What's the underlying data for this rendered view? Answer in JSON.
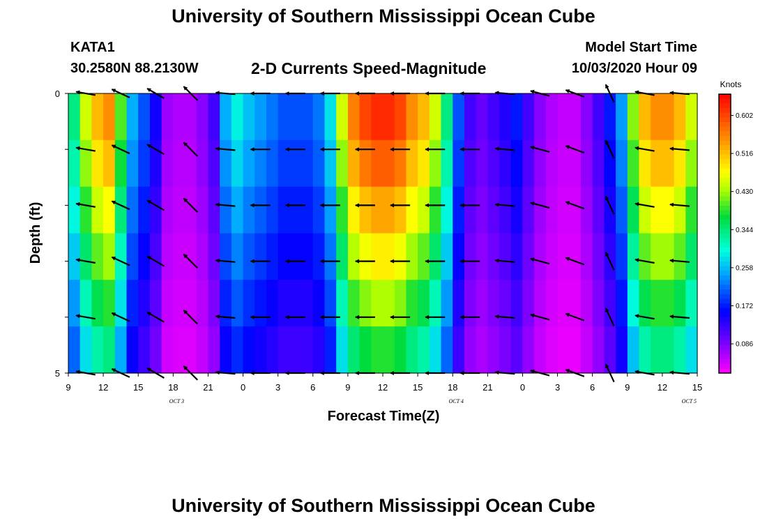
{
  "page": {
    "title_top": "University of Southern Mississippi Ocean Cube",
    "title_bottom": "University of Southern Mississippi Ocean Cube",
    "station_id": "KATA1",
    "coordinates": "30.2580N 88.2130W",
    "subtitle": "2-D Currents Speed-Magnitude",
    "model_start_label": "Model Start Time",
    "model_start_value": "10/03/2020 Hour 09"
  },
  "chart_data": {
    "type": "heatmap",
    "title": "2-D Currents Speed-Magnitude",
    "xlabel": "Forecast Time(Z)",
    "ylabel": "Depth (ft)",
    "x_tick_labels": [
      "9",
      "12",
      "15",
      "18",
      "21",
      "0",
      "3",
      "6",
      "9",
      "12",
      "15",
      "18",
      "21",
      "0",
      "3",
      "6",
      "9",
      "12",
      "15"
    ],
    "day_labels": [
      "OCT 3",
      "OCT 4",
      "OCT 5"
    ],
    "y_tick_labels": [
      "0",
      "5"
    ],
    "ylim": [
      0,
      5
    ],
    "x_range_hours": [
      0,
      54
    ],
    "colorbar": {
      "title": "Knots",
      "ticks": [
        "0.602",
        "0.516",
        "0.430",
        "0.344",
        "0.258",
        "0.172",
        "0.086"
      ],
      "range": [
        0.02,
        0.65
      ]
    },
    "speed_profile": {
      "hours": [
        0,
        1,
        2,
        3,
        4,
        5,
        6,
        7,
        8,
        9,
        10,
        11,
        12,
        13,
        14,
        15,
        16,
        17,
        18,
        19,
        20,
        21,
        22,
        23,
        24,
        25,
        26,
        27,
        28,
        29,
        30,
        31,
        32,
        33,
        34,
        35,
        36,
        37,
        38,
        39,
        40,
        41,
        42,
        43,
        44,
        45,
        46,
        47,
        48,
        49,
        50,
        51,
        52,
        53,
        54
      ],
      "speed_knots": [
        0.34,
        0.45,
        0.52,
        0.55,
        0.4,
        0.25,
        0.2,
        0.15,
        0.07,
        0.06,
        0.06,
        0.08,
        0.12,
        0.25,
        0.29,
        0.26,
        0.24,
        0.22,
        0.2,
        0.2,
        0.2,
        0.22,
        0.28,
        0.45,
        0.56,
        0.6,
        0.62,
        0.62,
        0.6,
        0.55,
        0.52,
        0.45,
        0.34,
        0.2,
        0.12,
        0.1,
        0.12,
        0.14,
        0.17,
        0.12,
        0.08,
        0.06,
        0.05,
        0.05,
        0.08,
        0.12,
        0.17,
        0.24,
        0.42,
        0.52,
        0.55,
        0.55,
        0.52,
        0.45,
        0.38
      ]
    },
    "depth_factors": [
      1.0,
      0.94,
      0.86,
      0.78,
      0.7,
      0.62
    ],
    "vector_rows_depth": [
      0,
      1,
      2,
      3,
      4,
      5
    ],
    "vector_columns_hours": [
      1.5,
      4.5,
      7.5,
      10.5,
      13.5,
      16.5,
      19.5,
      22.5,
      25.5,
      28.5,
      31.5,
      34.5,
      37.5,
      40.5,
      43.5,
      46.5,
      49.5,
      52.5
    ],
    "vector_directions_deg": [
      190,
      205,
      210,
      225,
      185,
      180,
      180,
      180,
      180,
      180,
      180,
      180,
      185,
      195,
      200,
      245,
      190,
      185
    ]
  }
}
